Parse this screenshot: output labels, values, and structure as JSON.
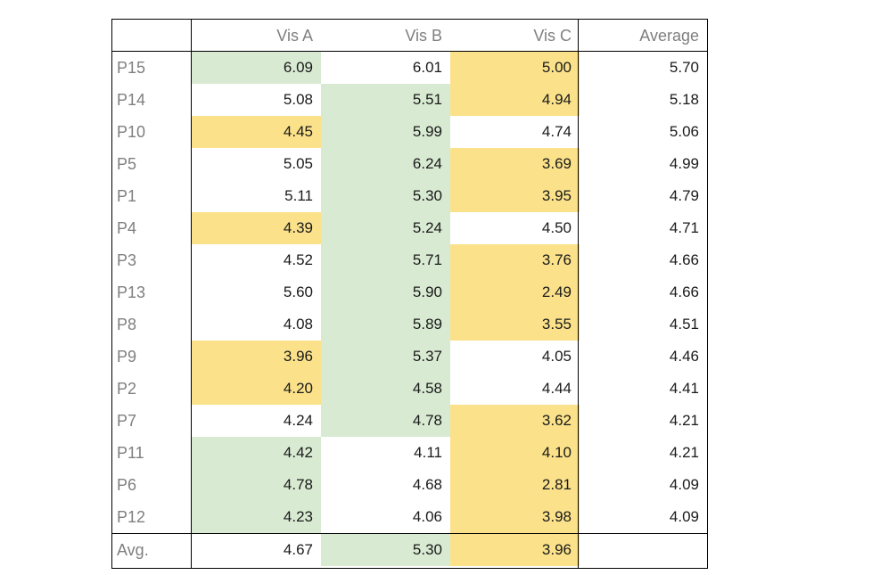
{
  "colors": {
    "green": "#d9ead3",
    "yellow": "#fbe28a"
  },
  "header": {
    "corner": "",
    "col1": "Vis A",
    "col2": "Vis B",
    "col3": "Vis C",
    "col4": "Average"
  },
  "rows": [
    {
      "label": "P15",
      "a": "6.09",
      "b": "6.01",
      "c": "5.00",
      "avg": "5.70",
      "a_hl": "green",
      "b_hl": "",
      "c_hl": "yellow"
    },
    {
      "label": "P14",
      "a": "5.08",
      "b": "5.51",
      "c": "4.94",
      "avg": "5.18",
      "a_hl": "",
      "b_hl": "green",
      "c_hl": "yellow"
    },
    {
      "label": "P10",
      "a": "4.45",
      "b": "5.99",
      "c": "4.74",
      "avg": "5.06",
      "a_hl": "yellow",
      "b_hl": "green",
      "c_hl": ""
    },
    {
      "label": "P5",
      "a": "5.05",
      "b": "6.24",
      "c": "3.69",
      "avg": "4.99",
      "a_hl": "",
      "b_hl": "green",
      "c_hl": "yellow"
    },
    {
      "label": "P1",
      "a": "5.11",
      "b": "5.30",
      "c": "3.95",
      "avg": "4.79",
      "a_hl": "",
      "b_hl": "green",
      "c_hl": "yellow"
    },
    {
      "label": "P4",
      "a": "4.39",
      "b": "5.24",
      "c": "4.50",
      "avg": "4.71",
      "a_hl": "yellow",
      "b_hl": "green",
      "c_hl": ""
    },
    {
      "label": "P3",
      "a": "4.52",
      "b": "5.71",
      "c": "3.76",
      "avg": "4.66",
      "a_hl": "",
      "b_hl": "green",
      "c_hl": "yellow"
    },
    {
      "label": "P13",
      "a": "5.60",
      "b": "5.90",
      "c": "2.49",
      "avg": "4.66",
      "a_hl": "",
      "b_hl": "green",
      "c_hl": "yellow"
    },
    {
      "label": "P8",
      "a": "4.08",
      "b": "5.89",
      "c": "3.55",
      "avg": "4.51",
      "a_hl": "",
      "b_hl": "green",
      "c_hl": "yellow"
    },
    {
      "label": "P9",
      "a": "3.96",
      "b": "5.37",
      "c": "4.05",
      "avg": "4.46",
      "a_hl": "yellow",
      "b_hl": "green",
      "c_hl": ""
    },
    {
      "label": "P2",
      "a": "4.20",
      "b": "4.58",
      "c": "4.44",
      "avg": "4.41",
      "a_hl": "yellow",
      "b_hl": "green",
      "c_hl": ""
    },
    {
      "label": "P7",
      "a": "4.24",
      "b": "4.78",
      "c": "3.62",
      "avg": "4.21",
      "a_hl": "",
      "b_hl": "green",
      "c_hl": "yellow"
    },
    {
      "label": "P11",
      "a": "4.42",
      "b": "4.11",
      "c": "4.10",
      "avg": "4.21",
      "a_hl": "green",
      "b_hl": "",
      "c_hl": "yellow"
    },
    {
      "label": "P6",
      "a": "4.78",
      "b": "4.68",
      "c": "2.81",
      "avg": "4.09",
      "a_hl": "green",
      "b_hl": "",
      "c_hl": "yellow"
    },
    {
      "label": "P12",
      "a": "4.23",
      "b": "4.06",
      "c": "3.98",
      "avg": "4.09",
      "a_hl": "green",
      "b_hl": "",
      "c_hl": "yellow"
    }
  ],
  "footer": {
    "label": "Avg.",
    "a": "4.67",
    "b": "5.30",
    "c": "3.96",
    "avg": "",
    "a_hl": "",
    "b_hl": "green",
    "c_hl": "yellow"
  }
}
